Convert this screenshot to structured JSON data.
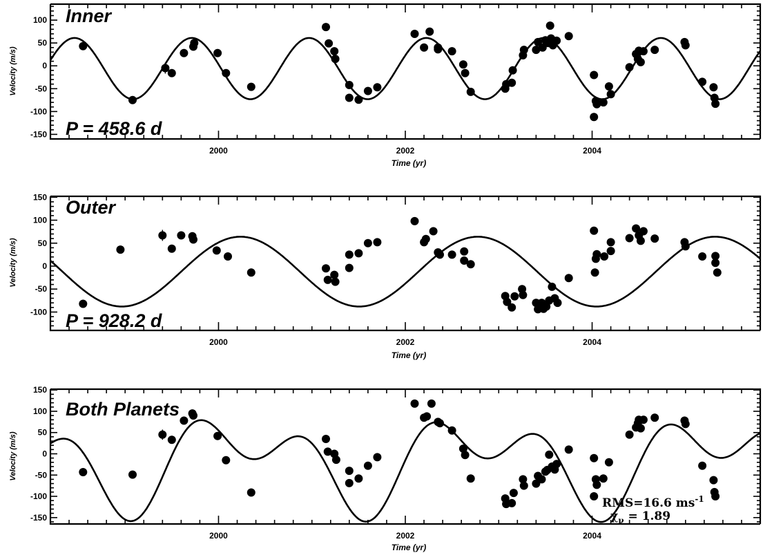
{
  "chart_data": [
    {
      "type": "scatter",
      "panel": "inner",
      "title": "Inner",
      "annotation": "P =  458.6  d",
      "xlabel": "Time  (yr)",
      "ylabel": "Velocity (m/s)",
      "xlim": [
        1998.2,
        2005.8
      ],
      "ylim": [
        -160,
        135
      ],
      "xticks": [
        2000,
        2002,
        2004
      ],
      "yticks": [
        -150,
        -100,
        -50,
        0,
        50,
        100
      ],
      "model": {
        "period_days": 458.6,
        "amplitude": 67,
        "phase_year": 1999.4,
        "offset": -6
      },
      "points": [
        {
          "x": 1998.55,
          "y": 43
        },
        {
          "x": 1999.08,
          "y": -75
        },
        {
          "x": 1999.43,
          "y": -5
        },
        {
          "x": 1999.5,
          "y": -16
        },
        {
          "x": 1999.63,
          "y": 28
        },
        {
          "x": 1999.73,
          "y": 42
        },
        {
          "x": 1999.74,
          "y": 50
        },
        {
          "x": 1999.99,
          "y": 28
        },
        {
          "x": 2000.08,
          "y": -16
        },
        {
          "x": 2000.35,
          "y": -46
        },
        {
          "x": 2001.15,
          "y": 85
        },
        {
          "x": 2001.18,
          "y": 49
        },
        {
          "x": 2001.24,
          "y": 32
        },
        {
          "x": 2001.25,
          "y": 15
        },
        {
          "x": 2001.4,
          "y": -42
        },
        {
          "x": 2001.4,
          "y": -70
        },
        {
          "x": 2001.5,
          "y": -74
        },
        {
          "x": 2001.6,
          "y": -55
        },
        {
          "x": 2001.7,
          "y": -47
        },
        {
          "x": 2002.1,
          "y": 70
        },
        {
          "x": 2002.2,
          "y": 40
        },
        {
          "x": 2002.26,
          "y": 75
        },
        {
          "x": 2002.35,
          "y": 40
        },
        {
          "x": 2002.35,
          "y": 36
        },
        {
          "x": 2002.5,
          "y": 32
        },
        {
          "x": 2002.62,
          "y": 3
        },
        {
          "x": 2002.64,
          "y": -16
        },
        {
          "x": 2002.7,
          "y": -57
        },
        {
          "x": 2003.07,
          "y": -50
        },
        {
          "x": 2003.08,
          "y": -40
        },
        {
          "x": 2003.14,
          "y": -37
        },
        {
          "x": 2003.15,
          "y": -10
        },
        {
          "x": 2003.26,
          "y": 23
        },
        {
          "x": 2003.27,
          "y": 35
        },
        {
          "x": 2003.4,
          "y": 35
        },
        {
          "x": 2003.42,
          "y": 52
        },
        {
          "x": 2003.47,
          "y": 40
        },
        {
          "x": 2003.5,
          "y": 56
        },
        {
          "x": 2003.53,
          "y": 50
        },
        {
          "x": 2003.55,
          "y": 88
        },
        {
          "x": 2003.56,
          "y": 60
        },
        {
          "x": 2003.58,
          "y": 45
        },
        {
          "x": 2003.62,
          "y": 55
        },
        {
          "x": 2003.75,
          "y": 65
        },
        {
          "x": 2004.02,
          "y": -20
        },
        {
          "x": 2004.02,
          "y": -112
        },
        {
          "x": 2004.04,
          "y": -77
        },
        {
          "x": 2004.05,
          "y": -84
        },
        {
          "x": 2004.12,
          "y": -80
        },
        {
          "x": 2004.18,
          "y": -45
        },
        {
          "x": 2004.2,
          "y": -62
        },
        {
          "x": 2004.4,
          "y": -3
        },
        {
          "x": 2004.47,
          "y": 26
        },
        {
          "x": 2004.49,
          "y": 15
        },
        {
          "x": 2004.5,
          "y": 33
        },
        {
          "x": 2004.52,
          "y": 8
        },
        {
          "x": 2004.55,
          "y": 32
        },
        {
          "x": 2004.67,
          "y": 35
        },
        {
          "x": 2004.99,
          "y": 52
        },
        {
          "x": 2005.0,
          "y": 45
        },
        {
          "x": 2005.18,
          "y": -35
        },
        {
          "x": 2005.3,
          "y": -47
        },
        {
          "x": 2005.31,
          "y": -70
        },
        {
          "x": 2005.32,
          "y": -83
        }
      ],
      "error_bars": [
        {
          "x": 1999.43,
          "y": -5,
          "err": 12
        }
      ]
    },
    {
      "type": "scatter",
      "panel": "outer",
      "title": "Outer",
      "annotation": "P =  928.2  d",
      "xlabel": "Time  (yr)",
      "ylabel": "Velocity (m/s)",
      "xlim": [
        1998.2,
        2005.8
      ],
      "ylim": [
        -140,
        152
      ],
      "xticks": [
        2000,
        2002,
        2004
      ],
      "yticks": [
        -100,
        -50,
        0,
        50,
        100,
        150
      ],
      "model": {
        "period_days": 928.2,
        "amplitude": 76,
        "phase_year": 1999.6,
        "offset": -12
      },
      "points": [
        {
          "x": 1998.55,
          "y": -82
        },
        {
          "x": 1998.95,
          "y": 36
        },
        {
          "x": 1999.4,
          "y": 67
        },
        {
          "x": 1999.5,
          "y": 38
        },
        {
          "x": 1999.6,
          "y": 67
        },
        {
          "x": 1999.72,
          "y": 65
        },
        {
          "x": 1999.73,
          "y": 58
        },
        {
          "x": 1999.98,
          "y": 34
        },
        {
          "x": 2000.1,
          "y": 21
        },
        {
          "x": 2000.35,
          "y": -14
        },
        {
          "x": 2001.15,
          "y": -5
        },
        {
          "x": 2001.17,
          "y": -30
        },
        {
          "x": 2001.24,
          "y": -19
        },
        {
          "x": 2001.25,
          "y": -34
        },
        {
          "x": 2001.4,
          "y": -4
        },
        {
          "x": 2001.4,
          "y": 25
        },
        {
          "x": 2001.5,
          "y": 28
        },
        {
          "x": 2001.6,
          "y": 50
        },
        {
          "x": 2001.7,
          "y": 52
        },
        {
          "x": 2002.1,
          "y": 98
        },
        {
          "x": 2002.2,
          "y": 52
        },
        {
          "x": 2002.22,
          "y": 59
        },
        {
          "x": 2002.3,
          "y": 76
        },
        {
          "x": 2002.35,
          "y": 30
        },
        {
          "x": 2002.37,
          "y": 25
        },
        {
          "x": 2002.5,
          "y": 25
        },
        {
          "x": 2002.63,
          "y": 12
        },
        {
          "x": 2002.63,
          "y": 32
        },
        {
          "x": 2002.7,
          "y": 4
        },
        {
          "x": 2003.07,
          "y": -65
        },
        {
          "x": 2003.09,
          "y": -78
        },
        {
          "x": 2003.14,
          "y": -90
        },
        {
          "x": 2003.17,
          "y": -66
        },
        {
          "x": 2003.25,
          "y": -50
        },
        {
          "x": 2003.26,
          "y": -63
        },
        {
          "x": 2003.4,
          "y": -80
        },
        {
          "x": 2003.42,
          "y": -94
        },
        {
          "x": 2003.46,
          "y": -80
        },
        {
          "x": 2003.48,
          "y": -93
        },
        {
          "x": 2003.51,
          "y": -88
        },
        {
          "x": 2003.54,
          "y": -75
        },
        {
          "x": 2003.57,
          "y": -45
        },
        {
          "x": 2003.6,
          "y": -70
        },
        {
          "x": 2003.63,
          "y": -80
        },
        {
          "x": 2003.75,
          "y": -26
        },
        {
          "x": 2004.02,
          "y": 77
        },
        {
          "x": 2004.03,
          "y": -14
        },
        {
          "x": 2004.04,
          "y": 16
        },
        {
          "x": 2004.05,
          "y": 26
        },
        {
          "x": 2004.13,
          "y": 21
        },
        {
          "x": 2004.2,
          "y": 52
        },
        {
          "x": 2004.2,
          "y": 33
        },
        {
          "x": 2004.4,
          "y": 61
        },
        {
          "x": 2004.47,
          "y": 82
        },
        {
          "x": 2004.5,
          "y": 67
        },
        {
          "x": 2004.52,
          "y": 55
        },
        {
          "x": 2004.55,
          "y": 76
        },
        {
          "x": 2004.67,
          "y": 60
        },
        {
          "x": 2004.99,
          "y": 52
        },
        {
          "x": 2005.0,
          "y": 43
        },
        {
          "x": 2005.18,
          "y": 21
        },
        {
          "x": 2005.32,
          "y": 22
        },
        {
          "x": 2005.32,
          "y": 7
        },
        {
          "x": 2005.34,
          "y": -14
        }
      ],
      "error_bars": [
        {
          "x": 1999.4,
          "y": 67,
          "err": 12
        }
      ]
    },
    {
      "type": "scatter",
      "panel": "both",
      "title": "Both Planets",
      "annotation_rms": "RMS=16.6  ms",
      "annotation_rms_exp": "-1",
      "annotation_chi_symbol": "χ",
      "annotation_chi_sub": "ν",
      "annotation_chi_value": "=  1.89",
      "xlabel": "Time  (yr)",
      "ylabel": "Velocity (m/s)",
      "xlim": [
        1998.2,
        2005.8
      ],
      "ylim": [
        -165,
        152
      ],
      "xticks": [
        2000,
        2002,
        2004
      ],
      "yticks": [
        -150,
        -100,
        -50,
        0,
        50,
        100,
        150
      ],
      "points": [
        {
          "x": 1998.55,
          "y": -43
        },
        {
          "x": 1999.08,
          "y": -49
        },
        {
          "x": 1999.4,
          "y": 45
        },
        {
          "x": 1999.5,
          "y": 33
        },
        {
          "x": 1999.63,
          "y": 78
        },
        {
          "x": 1999.72,
          "y": 95
        },
        {
          "x": 1999.73,
          "y": 90
        },
        {
          "x": 1999.99,
          "y": 42
        },
        {
          "x": 2000.08,
          "y": -15
        },
        {
          "x": 2000.35,
          "y": -91
        },
        {
          "x": 2001.15,
          "y": 35
        },
        {
          "x": 2001.17,
          "y": 5
        },
        {
          "x": 2001.24,
          "y": 0
        },
        {
          "x": 2001.26,
          "y": -14
        },
        {
          "x": 2001.4,
          "y": -40
        },
        {
          "x": 2001.4,
          "y": -69
        },
        {
          "x": 2001.5,
          "y": -58
        },
        {
          "x": 2001.6,
          "y": -28
        },
        {
          "x": 2001.7,
          "y": -8
        },
        {
          "x": 2002.1,
          "y": 118
        },
        {
          "x": 2002.2,
          "y": 85
        },
        {
          "x": 2002.23,
          "y": 88
        },
        {
          "x": 2002.28,
          "y": 118
        },
        {
          "x": 2002.35,
          "y": 75
        },
        {
          "x": 2002.37,
          "y": 72
        },
        {
          "x": 2002.5,
          "y": 55
        },
        {
          "x": 2002.62,
          "y": 12
        },
        {
          "x": 2002.64,
          "y": -3
        },
        {
          "x": 2002.7,
          "y": -58
        },
        {
          "x": 2003.07,
          "y": -105
        },
        {
          "x": 2003.08,
          "y": -118
        },
        {
          "x": 2003.14,
          "y": -116
        },
        {
          "x": 2003.16,
          "y": -92
        },
        {
          "x": 2003.26,
          "y": -60
        },
        {
          "x": 2003.27,
          "y": -75
        },
        {
          "x": 2003.4,
          "y": -70
        },
        {
          "x": 2003.42,
          "y": -52
        },
        {
          "x": 2003.46,
          "y": -60
        },
        {
          "x": 2003.5,
          "y": -42
        },
        {
          "x": 2003.52,
          "y": -38
        },
        {
          "x": 2003.54,
          "y": -2
        },
        {
          "x": 2003.57,
          "y": -30
        },
        {
          "x": 2003.6,
          "y": -37
        },
        {
          "x": 2003.62,
          "y": -24
        },
        {
          "x": 2003.75,
          "y": 10
        },
        {
          "x": 2004.02,
          "y": -10
        },
        {
          "x": 2004.02,
          "y": -100
        },
        {
          "x": 2004.04,
          "y": -60
        },
        {
          "x": 2004.05,
          "y": -73
        },
        {
          "x": 2004.12,
          "y": -58
        },
        {
          "x": 2004.18,
          "y": -20
        },
        {
          "x": 2004.4,
          "y": 45
        },
        {
          "x": 2004.47,
          "y": 62
        },
        {
          "x": 2004.49,
          "y": 72
        },
        {
          "x": 2004.5,
          "y": 80
        },
        {
          "x": 2004.52,
          "y": 60
        },
        {
          "x": 2004.55,
          "y": 80
        },
        {
          "x": 2004.67,
          "y": 85
        },
        {
          "x": 2004.99,
          "y": 78
        },
        {
          "x": 2005.0,
          "y": 70
        },
        {
          "x": 2005.18,
          "y": -28
        },
        {
          "x": 2005.3,
          "y": -62
        },
        {
          "x": 2005.31,
          "y": -90
        },
        {
          "x": 2005.32,
          "y": -100
        }
      ],
      "error_bars": [
        {
          "x": 1999.4,
          "y": 45,
          "err": 12
        }
      ]
    }
  ]
}
